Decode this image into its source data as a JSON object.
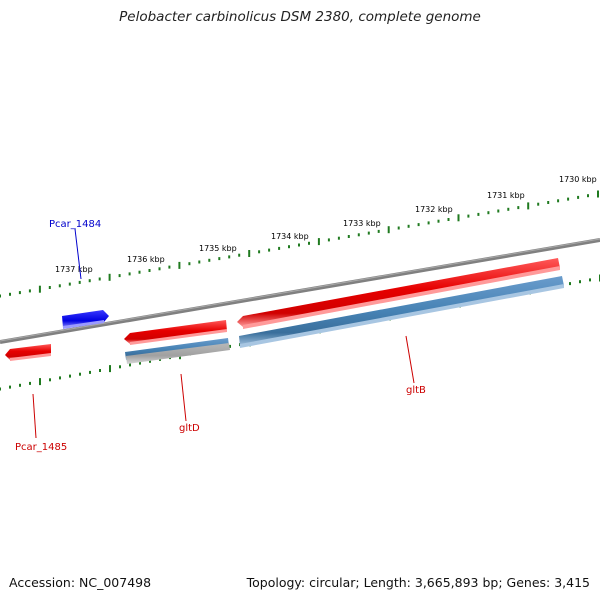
{
  "title": "Pelobacter carbinolicus DSM 2380, complete genome",
  "footer": {
    "accession": "Accession: NC_007498",
    "summary": "Topology: circular; Length: 3,665,893 bp; Genes: 3,415"
  },
  "colors": {
    "backbone": "#7a7a7a",
    "ticks": "#1f7a1f",
    "gene_forward": "#e60000",
    "gene_reverse": "#0000ee",
    "cds": "#4682b4",
    "label_red": "#cc0000",
    "label_blue": "#0000cc"
  },
  "kbp_labels": [
    "1730 kbp",
    "1731 kbp",
    "1732 kbp",
    "1733 kbp",
    "1734 kbp",
    "1735 kbp",
    "1736 kbp",
    "1737 kbp"
  ],
  "genes": [
    {
      "id": "Pcar_1484",
      "label": "Pcar_1484",
      "color": "blue"
    },
    {
      "id": "Pcar_1485",
      "label": "Pcar_1485",
      "color": "red"
    },
    {
      "id": "gltD",
      "label": "gltD",
      "color": "red"
    },
    {
      "id": "gltB",
      "label": "gltB",
      "color": "red"
    }
  ]
}
